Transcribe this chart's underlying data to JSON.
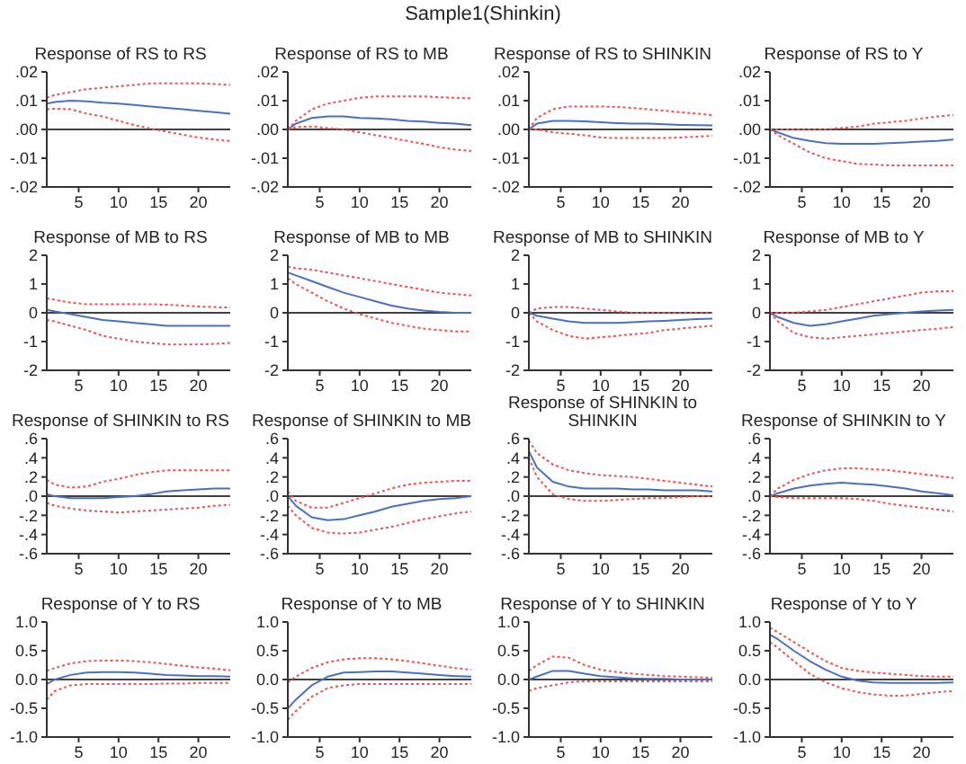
{
  "chart_data": [
    {
      "type": "line",
      "title": "Response of RS to RS",
      "annotations": [
        "Sample1(Shinkin)"
      ],
      "x": [
        1,
        2,
        4,
        6,
        8,
        10,
        12,
        14,
        16,
        18,
        20,
        22,
        24
      ],
      "xlim": [
        1,
        24
      ],
      "xticks": [
        5,
        10,
        15,
        20
      ],
      "ylim": [
        -0.02,
        0.02
      ],
      "yticks": [
        {
          "value": -0.02,
          "label": "-.02"
        },
        {
          "value": -0.01,
          "label": "-.01"
        },
        {
          "value": 0,
          "label": ".00"
        },
        {
          "value": 0.01,
          "label": ".01"
        },
        {
          "value": 0.02,
          "label": ".02"
        }
      ],
      "grid": false,
      "legend": false,
      "marker": "none",
      "ref_lines": [
        {
          "axis": "y",
          "value": 0,
          "color": "#000000"
        }
      ],
      "series": [
        {
          "color": "#4a6fc4",
          "line_style": "solid",
          "values": [
            0.009,
            0.0095,
            0.01,
            0.0098,
            0.0093,
            0.009,
            0.0085,
            0.008,
            0.0075,
            0.007,
            0.0065,
            0.006,
            0.0055
          ]
        },
        {
          "color": "#f05050",
          "line_style": "dotted",
          "values": [
            0.011,
            0.012,
            0.013,
            0.014,
            0.0145,
            0.015,
            0.0155,
            0.016,
            0.016,
            0.016,
            0.016,
            0.0158,
            0.0155
          ]
        },
        {
          "color": "#f05050",
          "line_style": "dotted",
          "values": [
            0.007,
            0.0072,
            0.007,
            0.0055,
            0.0045,
            0.003,
            0.0015,
            0.0003,
            -0.0008,
            -0.0018,
            -0.0028,
            -0.0035,
            -0.004
          ]
        }
      ]
    },
    {
      "type": "line",
      "title": "Response of RS to MB",
      "x": [
        1,
        2,
        4,
        6,
        8,
        10,
        12,
        14,
        16,
        18,
        20,
        22,
        24
      ],
      "xlim": [
        1,
        24
      ],
      "xticks": [
        5,
        10,
        15,
        20
      ],
      "ylim": [
        -0.02,
        0.02
      ],
      "yticks": [
        {
          "value": -0.02,
          "label": "-.02"
        },
        {
          "value": -0.01,
          "label": "-.01"
        },
        {
          "value": 0,
          "label": ".00"
        },
        {
          "value": 0.01,
          "label": ".01"
        },
        {
          "value": 0.02,
          "label": ".02"
        }
      ],
      "grid": false,
      "legend": false,
      "marker": "none",
      "ref_lines": [
        {
          "axis": "y",
          "value": 0,
          "color": "#000000"
        }
      ],
      "series": [
        {
          "color": "#4a6fc4",
          "line_style": "solid",
          "values": [
            0,
            0.002,
            0.004,
            0.0045,
            0.0045,
            0.004,
            0.0038,
            0.0035,
            0.003,
            0.0027,
            0.0023,
            0.002,
            0.0015
          ]
        },
        {
          "color": "#f05050",
          "line_style": "dotted",
          "values": [
            0,
            0.003,
            0.007,
            0.009,
            0.01,
            0.011,
            0.0115,
            0.0115,
            0.0115,
            0.0115,
            0.0112,
            0.011,
            0.0108
          ]
        },
        {
          "color": "#f05050",
          "line_style": "dotted",
          "values": [
            0,
            0.0008,
            0.001,
            0.0005,
            0,
            -0.001,
            -0.002,
            -0.003,
            -0.004,
            -0.005,
            -0.0062,
            -0.007,
            -0.0075
          ]
        }
      ]
    },
    {
      "type": "line",
      "title": "Response of RS to SHINKIN",
      "x": [
        1,
        2,
        4,
        6,
        8,
        10,
        12,
        14,
        16,
        18,
        20,
        22,
        24
      ],
      "xlim": [
        1,
        24
      ],
      "xticks": [
        5,
        10,
        15,
        20
      ],
      "ylim": [
        -0.02,
        0.02
      ],
      "yticks": [
        {
          "value": -0.02,
          "label": "-.02"
        },
        {
          "value": -0.01,
          "label": "-.01"
        },
        {
          "value": 0,
          "label": ".00"
        },
        {
          "value": 0.01,
          "label": ".01"
        },
        {
          "value": 0.02,
          "label": ".02"
        }
      ],
      "grid": false,
      "legend": false,
      "marker": "none",
      "ref_lines": [
        {
          "axis": "y",
          "value": 0,
          "color": "#000000"
        }
      ],
      "series": [
        {
          "color": "#4a6fc4",
          "line_style": "solid",
          "values": [
            0,
            0.002,
            0.003,
            0.003,
            0.0028,
            0.0025,
            0.0022,
            0.002,
            0.002,
            0.0018,
            0.0016,
            0.0015,
            0.0014
          ]
        },
        {
          "color": "#f05050",
          "line_style": "dotted",
          "values": [
            0,
            0.004,
            0.007,
            0.008,
            0.008,
            0.008,
            0.0078,
            0.0075,
            0.007,
            0.0065,
            0.006,
            0.0055,
            0.005
          ]
        },
        {
          "color": "#f05050",
          "line_style": "dotted",
          "values": [
            0,
            0,
            -0.001,
            -0.0015,
            -0.002,
            -0.0028,
            -0.003,
            -0.003,
            -0.003,
            -0.003,
            -0.0028,
            -0.0025,
            -0.0022
          ]
        }
      ]
    },
    {
      "type": "line",
      "title": "Response of RS to Y",
      "x": [
        1,
        2,
        4,
        6,
        8,
        10,
        12,
        14,
        16,
        18,
        20,
        22,
        24
      ],
      "xlim": [
        1,
        24
      ],
      "xticks": [
        5,
        10,
        15,
        20
      ],
      "ylim": [
        -0.02,
        0.02
      ],
      "yticks": [
        {
          "value": -0.02,
          "label": "-.02"
        },
        {
          "value": -0.01,
          "label": "-.01"
        },
        {
          "value": 0,
          "label": ".00"
        },
        {
          "value": 0.01,
          "label": ".01"
        },
        {
          "value": 0.02,
          "label": ".02"
        }
      ],
      "grid": false,
      "legend": false,
      "marker": "none",
      "ref_lines": [
        {
          "axis": "y",
          "value": 0,
          "color": "#000000"
        }
      ],
      "series": [
        {
          "color": "#4a6fc4",
          "line_style": "solid",
          "values": [
            0,
            -0.001,
            -0.003,
            -0.004,
            -0.0048,
            -0.005,
            -0.005,
            -0.005,
            -0.0048,
            -0.0045,
            -0.0042,
            -0.004,
            -0.0035
          ]
        },
        {
          "color": "#f05050",
          "line_style": "dotted",
          "values": [
            0,
            0,
            0,
            0,
            0,
            0.0005,
            0.001,
            0.002,
            0.0025,
            0.003,
            0.0038,
            0.0045,
            0.005
          ]
        },
        {
          "color": "#f05050",
          "line_style": "dotted",
          "values": [
            0,
            -0.002,
            -0.005,
            -0.008,
            -0.01,
            -0.011,
            -0.012,
            -0.0122,
            -0.0125,
            -0.0125,
            -0.0125,
            -0.0125,
            -0.0125
          ]
        }
      ]
    },
    {
      "type": "line",
      "title": "Response of MB to RS",
      "x": [
        1,
        2,
        4,
        6,
        8,
        10,
        12,
        14,
        16,
        18,
        20,
        22,
        24
      ],
      "xlim": [
        1,
        24
      ],
      "xticks": [
        5,
        10,
        15,
        20
      ],
      "ylim": [
        -2,
        2
      ],
      "yticks": [
        -2,
        -1,
        0,
        1,
        2
      ],
      "grid": false,
      "legend": false,
      "marker": "none",
      "ref_lines": [
        {
          "axis": "y",
          "value": 0,
          "color": "#000000"
        }
      ],
      "series": [
        {
          "color": "#4a6fc4",
          "line_style": "solid",
          "values": [
            0.1,
            0.05,
            -0.05,
            -0.15,
            -0.25,
            -0.3,
            -0.35,
            -0.4,
            -0.45,
            -0.45,
            -0.45,
            -0.45,
            -0.45
          ]
        },
        {
          "color": "#f05050",
          "line_style": "dotted",
          "values": [
            0.5,
            0.45,
            0.35,
            0.3,
            0.3,
            0.3,
            0.3,
            0.3,
            0.28,
            0.25,
            0.22,
            0.2,
            0.18
          ]
        },
        {
          "color": "#f05050",
          "line_style": "dotted",
          "values": [
            -0.25,
            -0.3,
            -0.45,
            -0.6,
            -0.8,
            -0.9,
            -1.0,
            -1.05,
            -1.1,
            -1.1,
            -1.1,
            -1.08,
            -1.05
          ]
        }
      ]
    },
    {
      "type": "line",
      "title": "Response of MB to MB",
      "x": [
        1,
        2,
        4,
        6,
        8,
        10,
        12,
        14,
        16,
        18,
        20,
        22,
        24
      ],
      "xlim": [
        1,
        24
      ],
      "xticks": [
        5,
        10,
        15,
        20
      ],
      "ylim": [
        -2,
        2
      ],
      "yticks": [
        -2,
        -1,
        0,
        1,
        2
      ],
      "grid": false,
      "legend": false,
      "marker": "none",
      "ref_lines": [
        {
          "axis": "y",
          "value": 0,
          "color": "#000000"
        }
      ],
      "series": [
        {
          "color": "#4a6fc4",
          "line_style": "solid",
          "values": [
            1.4,
            1.3,
            1.1,
            0.9,
            0.7,
            0.55,
            0.4,
            0.25,
            0.15,
            0.08,
            0.03,
            0,
            0
          ]
        },
        {
          "color": "#f05050",
          "line_style": "dotted",
          "values": [
            1.6,
            1.55,
            1.5,
            1.4,
            1.3,
            1.2,
            1.1,
            1.0,
            0.9,
            0.8,
            0.7,
            0.65,
            0.6
          ]
        },
        {
          "color": "#f05050",
          "line_style": "dotted",
          "values": [
            1.2,
            1.0,
            0.7,
            0.4,
            0.15,
            -0.05,
            -0.2,
            -0.35,
            -0.45,
            -0.55,
            -0.6,
            -0.65,
            -0.65
          ]
        }
      ]
    },
    {
      "type": "line",
      "title": "Response of MB to SHINKIN",
      "x": [
        1,
        2,
        4,
        6,
        8,
        10,
        12,
        14,
        16,
        18,
        20,
        22,
        24
      ],
      "xlim": [
        1,
        24
      ],
      "xticks": [
        5,
        10,
        15,
        20
      ],
      "ylim": [
        -2,
        2
      ],
      "yticks": [
        -2,
        -1,
        0,
        1,
        2
      ],
      "grid": false,
      "legend": false,
      "marker": "none",
      "ref_lines": [
        {
          "axis": "y",
          "value": 0,
          "color": "#000000"
        }
      ],
      "series": [
        {
          "color": "#4a6fc4",
          "line_style": "solid",
          "values": [
            0,
            -0.1,
            -0.2,
            -0.3,
            -0.35,
            -0.35,
            -0.35,
            -0.33,
            -0.3,
            -0.28,
            -0.25,
            -0.22,
            -0.2
          ]
        },
        {
          "color": "#f05050",
          "line_style": "dotted",
          "values": [
            0,
            0.15,
            0.2,
            0.2,
            0.15,
            0.1,
            0.05,
            0,
            0,
            0,
            0,
            0,
            0
          ]
        },
        {
          "color": "#f05050",
          "line_style": "dotted",
          "values": [
            0,
            -0.3,
            -0.6,
            -0.8,
            -0.9,
            -0.85,
            -0.8,
            -0.75,
            -0.7,
            -0.6,
            -0.55,
            -0.5,
            -0.45
          ]
        }
      ]
    },
    {
      "type": "line",
      "title": "Response of MB to Y",
      "x": [
        1,
        2,
        4,
        6,
        8,
        10,
        12,
        14,
        16,
        18,
        20,
        22,
        24
      ],
      "xlim": [
        1,
        24
      ],
      "xticks": [
        5,
        10,
        15,
        20
      ],
      "ylim": [
        -2,
        2
      ],
      "yticks": [
        -2,
        -1,
        0,
        1,
        2
      ],
      "grid": false,
      "legend": false,
      "marker": "none",
      "ref_lines": [
        {
          "axis": "y",
          "value": 0,
          "color": "#000000"
        }
      ],
      "series": [
        {
          "color": "#4a6fc4",
          "line_style": "solid",
          "values": [
            0,
            -0.15,
            -0.35,
            -0.45,
            -0.4,
            -0.3,
            -0.2,
            -0.1,
            -0.05,
            0,
            0.05,
            0.08,
            0.1
          ]
        },
        {
          "color": "#f05050",
          "line_style": "dotted",
          "values": [
            0,
            0,
            0,
            0.05,
            0.1,
            0.2,
            0.3,
            0.4,
            0.5,
            0.6,
            0.7,
            0.75,
            0.75
          ]
        },
        {
          "color": "#f05050",
          "line_style": "dotted",
          "values": [
            0,
            -0.3,
            -0.7,
            -0.85,
            -0.9,
            -0.85,
            -0.8,
            -0.75,
            -0.7,
            -0.65,
            -0.6,
            -0.55,
            -0.5
          ]
        }
      ]
    },
    {
      "type": "line",
      "title": "Response of SHINKIN to RS",
      "x": [
        1,
        2,
        4,
        6,
        8,
        10,
        12,
        14,
        16,
        18,
        20,
        22,
        24
      ],
      "xlim": [
        1,
        24
      ],
      "xticks": [
        5,
        10,
        15,
        20
      ],
      "ylim": [
        -0.6,
        0.6
      ],
      "yticks": [
        {
          "value": -0.6,
          "label": "-.6"
        },
        {
          "value": -0.4,
          "label": "-.4"
        },
        {
          "value": -0.2,
          "label": "-.2"
        },
        {
          "value": 0,
          "label": ".0"
        },
        {
          "value": 0.2,
          "label": ".2"
        },
        {
          "value": 0.4,
          "label": ".4"
        },
        {
          "value": 0.6,
          "label": ".6"
        }
      ],
      "grid": false,
      "legend": false,
      "marker": "none",
      "ref_lines": [
        {
          "axis": "y",
          "value": 0,
          "color": "#000000"
        }
      ],
      "series": [
        {
          "color": "#4a6fc4",
          "line_style": "solid",
          "values": [
            0.02,
            0,
            -0.02,
            -0.02,
            -0.02,
            -0.01,
            0,
            0.02,
            0.05,
            0.06,
            0.07,
            0.08,
            0.08
          ]
        },
        {
          "color": "#f05050",
          "line_style": "dotted",
          "values": [
            0.17,
            0.12,
            0.09,
            0.1,
            0.15,
            0.18,
            0.22,
            0.25,
            0.27,
            0.27,
            0.27,
            0.27,
            0.27
          ]
        },
        {
          "color": "#f05050",
          "line_style": "dotted",
          "values": [
            -0.07,
            -0.1,
            -0.13,
            -0.15,
            -0.16,
            -0.17,
            -0.16,
            -0.15,
            -0.14,
            -0.13,
            -0.12,
            -0.1,
            -0.09
          ]
        }
      ]
    },
    {
      "type": "line",
      "title": "Response of SHINKIN to MB",
      "x": [
        1,
        2,
        4,
        6,
        8,
        10,
        12,
        14,
        16,
        18,
        20,
        22,
        24
      ],
      "xlim": [
        1,
        24
      ],
      "xticks": [
        5,
        10,
        15,
        20
      ],
      "ylim": [
        -0.6,
        0.6
      ],
      "yticks": [
        {
          "value": -0.6,
          "label": "-.6"
        },
        {
          "value": -0.4,
          "label": "-.4"
        },
        {
          "value": -0.2,
          "label": "-.2"
        },
        {
          "value": 0,
          "label": ".0"
        },
        {
          "value": 0.2,
          "label": ".2"
        },
        {
          "value": 0.4,
          "label": ".4"
        },
        {
          "value": 0.6,
          "label": ".6"
        }
      ],
      "grid": false,
      "legend": false,
      "marker": "none",
      "ref_lines": [
        {
          "axis": "y",
          "value": 0,
          "color": "#000000"
        }
      ],
      "series": [
        {
          "color": "#4a6fc4",
          "line_style": "solid",
          "values": [
            0,
            -0.1,
            -0.22,
            -0.25,
            -0.24,
            -0.2,
            -0.16,
            -0.11,
            -0.08,
            -0.05,
            -0.03,
            -0.02,
            0
          ]
        },
        {
          "color": "#f05050",
          "line_style": "dotted",
          "values": [
            0.05,
            -0.05,
            -0.12,
            -0.12,
            -0.07,
            -0.02,
            0.03,
            0.08,
            0.12,
            0.14,
            0.15,
            0.16,
            0.16
          ]
        },
        {
          "color": "#f05050",
          "line_style": "dotted",
          "values": [
            -0.1,
            -0.2,
            -0.33,
            -0.38,
            -0.39,
            -0.38,
            -0.35,
            -0.32,
            -0.28,
            -0.24,
            -0.21,
            -0.18,
            -0.16
          ]
        }
      ]
    },
    {
      "type": "line",
      "title": "Response of SHINKIN to SHINKIN",
      "x": [
        1,
        2,
        4,
        6,
        8,
        10,
        12,
        14,
        16,
        18,
        20,
        22,
        24
      ],
      "xlim": [
        1,
        24
      ],
      "xticks": [
        5,
        10,
        15,
        20
      ],
      "ylim": [
        -0.6,
        0.6
      ],
      "yticks": [
        {
          "value": -0.6,
          "label": "-.6"
        },
        {
          "value": -0.4,
          "label": "-.4"
        },
        {
          "value": -0.2,
          "label": "-.2"
        },
        {
          "value": 0,
          "label": ".0"
        },
        {
          "value": 0.2,
          "label": ".2"
        },
        {
          "value": 0.4,
          "label": ".4"
        },
        {
          "value": 0.6,
          "label": ".6"
        }
      ],
      "grid": false,
      "legend": false,
      "marker": "none",
      "ref_lines": [
        {
          "axis": "y",
          "value": 0,
          "color": "#000000"
        }
      ],
      "series": [
        {
          "color": "#4a6fc4",
          "line_style": "solid",
          "values": [
            0.47,
            0.3,
            0.15,
            0.1,
            0.08,
            0.08,
            0.08,
            0.07,
            0.07,
            0.06,
            0.06,
            0.06,
            0.05
          ]
        },
        {
          "color": "#f05050",
          "line_style": "dotted",
          "values": [
            0.58,
            0.45,
            0.33,
            0.27,
            0.24,
            0.22,
            0.21,
            0.2,
            0.18,
            0.16,
            0.14,
            0.12,
            0.1
          ]
        },
        {
          "color": "#f05050",
          "line_style": "dotted",
          "values": [
            0.4,
            0.2,
            0.02,
            -0.03,
            -0.05,
            -0.05,
            -0.04,
            -0.03,
            -0.02,
            -0.02,
            -0.01,
            0,
            0
          ]
        }
      ]
    },
    {
      "type": "line",
      "title": "Response of SHINKIN to Y",
      "x": [
        1,
        2,
        4,
        6,
        8,
        10,
        12,
        14,
        16,
        18,
        20,
        22,
        24
      ],
      "xlim": [
        1,
        24
      ],
      "xticks": [
        5,
        10,
        15,
        20
      ],
      "ylim": [
        -0.6,
        0.6
      ],
      "yticks": [
        {
          "value": -0.6,
          "label": "-.6"
        },
        {
          "value": -0.4,
          "label": "-.4"
        },
        {
          "value": -0.2,
          "label": "-.2"
        },
        {
          "value": 0,
          "label": ".0"
        },
        {
          "value": 0.2,
          "label": ".2"
        },
        {
          "value": 0.4,
          "label": ".4"
        },
        {
          "value": 0.6,
          "label": ".6"
        }
      ],
      "grid": false,
      "legend": false,
      "marker": "none",
      "ref_lines": [
        {
          "axis": "y",
          "value": 0,
          "color": "#000000"
        }
      ],
      "series": [
        {
          "color": "#4a6fc4",
          "line_style": "solid",
          "values": [
            0,
            0.03,
            0.08,
            0.11,
            0.13,
            0.14,
            0.13,
            0.12,
            0.1,
            0.08,
            0.05,
            0.03,
            0.01
          ]
        },
        {
          "color": "#f05050",
          "line_style": "dotted",
          "values": [
            0,
            0.08,
            0.17,
            0.23,
            0.27,
            0.29,
            0.29,
            0.28,
            0.27,
            0.25,
            0.23,
            0.21,
            0.19
          ]
        },
        {
          "color": "#f05050",
          "line_style": "dotted",
          "values": [
            0,
            -0.01,
            -0.02,
            -0.02,
            -0.02,
            -0.02,
            -0.03,
            -0.05,
            -0.08,
            -0.1,
            -0.12,
            -0.14,
            -0.16
          ]
        }
      ]
    },
    {
      "type": "line",
      "title": "Response of Y to RS",
      "x": [
        1,
        2,
        4,
        6,
        8,
        10,
        12,
        14,
        16,
        18,
        20,
        22,
        24
      ],
      "xlim": [
        1,
        24
      ],
      "xticks": [
        5,
        10,
        15,
        20
      ],
      "ylim": [
        -1,
        1
      ],
      "yticks": [
        {
          "value": -1,
          "label": "-1.0"
        },
        {
          "value": -0.5,
          "label": "-0.5"
        },
        {
          "value": 0,
          "label": "0.0"
        },
        {
          "value": 0.5,
          "label": "0.5"
        },
        {
          "value": 1,
          "label": "1.0"
        }
      ],
      "grid": false,
      "legend": false,
      "marker": "none",
      "ref_lines": [
        {
          "axis": "y",
          "value": 0,
          "color": "#000000"
        }
      ],
      "series": [
        {
          "color": "#4a6fc4",
          "line_style": "solid",
          "values": [
            -0.08,
            0,
            0.08,
            0.12,
            0.13,
            0.13,
            0.12,
            0.1,
            0.08,
            0.07,
            0.06,
            0.06,
            0.05
          ]
        },
        {
          "color": "#f05050",
          "line_style": "dotted",
          "values": [
            0.15,
            0.2,
            0.28,
            0.32,
            0.33,
            0.33,
            0.32,
            0.3,
            0.27,
            0.24,
            0.21,
            0.19,
            0.16
          ]
        },
        {
          "color": "#f05050",
          "line_style": "dotted",
          "values": [
            -0.35,
            -0.2,
            -0.1,
            -0.08,
            -0.08,
            -0.08,
            -0.08,
            -0.08,
            -0.07,
            -0.07,
            -0.06,
            -0.06,
            -0.06
          ]
        }
      ]
    },
    {
      "type": "line",
      "title": "Response of Y to MB",
      "x": [
        1,
        2,
        4,
        6,
        8,
        10,
        12,
        14,
        16,
        18,
        20,
        22,
        24
      ],
      "xlim": [
        1,
        24
      ],
      "xticks": [
        5,
        10,
        15,
        20
      ],
      "ylim": [
        -1,
        1
      ],
      "yticks": [
        {
          "value": -1,
          "label": "-1.0"
        },
        {
          "value": -0.5,
          "label": "-0.5"
        },
        {
          "value": 0,
          "label": "0.0"
        },
        {
          "value": 0.5,
          "label": "0.5"
        },
        {
          "value": 1,
          "label": "1.0"
        }
      ],
      "grid": false,
      "legend": false,
      "marker": "none",
      "ref_lines": [
        {
          "axis": "y",
          "value": 0,
          "color": "#000000"
        }
      ],
      "series": [
        {
          "color": "#4a6fc4",
          "line_style": "solid",
          "values": [
            -0.5,
            -0.35,
            -0.1,
            0.05,
            0.12,
            0.13,
            0.14,
            0.14,
            0.12,
            0.1,
            0.08,
            0.06,
            0.05
          ]
        },
        {
          "color": "#f05050",
          "line_style": "dotted",
          "values": [
            -0.05,
            0.05,
            0.2,
            0.3,
            0.35,
            0.37,
            0.37,
            0.35,
            0.32,
            0.28,
            0.24,
            0.2,
            0.17
          ]
        },
        {
          "color": "#f05050",
          "line_style": "dotted",
          "values": [
            -0.7,
            -0.55,
            -0.3,
            -0.15,
            -0.1,
            -0.08,
            -0.08,
            -0.08,
            -0.08,
            -0.08,
            -0.08,
            -0.08,
            -0.08
          ]
        }
      ]
    },
    {
      "type": "line",
      "title": "Response of Y to SHINKIN",
      "x": [
        1,
        2,
        4,
        6,
        8,
        10,
        12,
        14,
        16,
        18,
        20,
        22,
        24
      ],
      "xlim": [
        1,
        24
      ],
      "xticks": [
        5,
        10,
        15,
        20
      ],
      "ylim": [
        -1,
        1
      ],
      "yticks": [
        {
          "value": -1,
          "label": "-1.0"
        },
        {
          "value": -0.5,
          "label": "-0.5"
        },
        {
          "value": 0,
          "label": "0.0"
        },
        {
          "value": 0.5,
          "label": "0.5"
        },
        {
          "value": 1,
          "label": "1.0"
        }
      ],
      "grid": false,
      "legend": false,
      "marker": "none",
      "ref_lines": [
        {
          "axis": "y",
          "value": 0,
          "color": "#000000"
        }
      ],
      "series": [
        {
          "color": "#4a6fc4",
          "line_style": "solid",
          "values": [
            0,
            0.05,
            0.15,
            0.15,
            0.1,
            0.06,
            0.04,
            0.02,
            0.01,
            0.01,
            0,
            0,
            0
          ]
        },
        {
          "color": "#f05050",
          "line_style": "dotted",
          "values": [
            0.15,
            0.25,
            0.4,
            0.38,
            0.25,
            0.17,
            0.13,
            0.1,
            0.08,
            0.06,
            0.05,
            0.04,
            0.03
          ]
        },
        {
          "color": "#f05050",
          "line_style": "dotted",
          "values": [
            -0.2,
            -0.15,
            -0.1,
            -0.05,
            -0.03,
            -0.03,
            -0.03,
            -0.03,
            -0.03,
            -0.03,
            -0.03,
            -0.03,
            -0.03
          ]
        }
      ]
    },
    {
      "type": "line",
      "title": "Response of Y to Y",
      "x": [
        1,
        2,
        4,
        6,
        8,
        10,
        12,
        14,
        16,
        18,
        20,
        22,
        24
      ],
      "xlim": [
        1,
        24
      ],
      "xticks": [
        5,
        10,
        15,
        20
      ],
      "ylim": [
        -1,
        1
      ],
      "yticks": [
        {
          "value": -1,
          "label": "-1.0"
        },
        {
          "value": -0.5,
          "label": "-0.5"
        },
        {
          "value": 0,
          "label": "0.0"
        },
        {
          "value": 0.5,
          "label": "0.5"
        },
        {
          "value": 1,
          "label": "1.0"
        }
      ],
      "grid": false,
      "legend": false,
      "marker": "none",
      "ref_lines": [
        {
          "axis": "y",
          "value": 0,
          "color": "#000000"
        }
      ],
      "series": [
        {
          "color": "#4a6fc4",
          "line_style": "solid",
          "values": [
            0.78,
            0.7,
            0.5,
            0.32,
            0.17,
            0.05,
            -0.02,
            -0.05,
            -0.06,
            -0.06,
            -0.06,
            -0.06,
            -0.05
          ]
        },
        {
          "color": "#f05050",
          "line_style": "dotted",
          "values": [
            0.9,
            0.82,
            0.65,
            0.48,
            0.32,
            0.2,
            0.15,
            0.12,
            0.1,
            0.08,
            0.06,
            0.05,
            0.05
          ]
        },
        {
          "color": "#f05050",
          "line_style": "dotted",
          "values": [
            0.65,
            0.55,
            0.32,
            0.1,
            -0.05,
            -0.15,
            -0.22,
            -0.26,
            -0.28,
            -0.28,
            -0.25,
            -0.22,
            -0.2
          ]
        }
      ]
    }
  ]
}
